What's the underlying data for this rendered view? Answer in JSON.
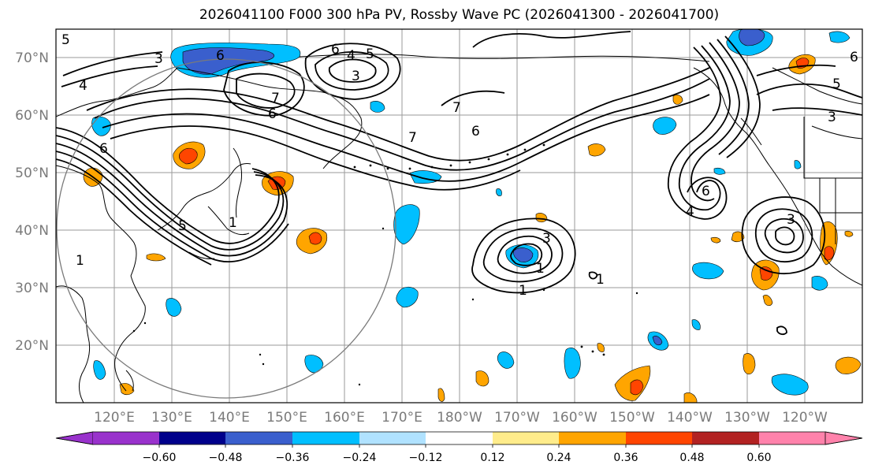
{
  "title": "2026041100 F000 300 hPa PV, Rossby Wave PC (2026041300 - 2026041700)",
  "lat_labels": [
    "70°N",
    "60°N",
    "50°N",
    "40°N",
    "30°N",
    "20°N"
  ],
  "lon_labels": [
    "120°E",
    "130°E",
    "140°E",
    "150°E",
    "160°E",
    "170°E",
    "180°W",
    "170°W",
    "160°W",
    "150°W",
    "140°W",
    "130°W",
    "120°W"
  ],
  "contour_labels": [
    "5",
    "3",
    "4",
    "6",
    "6",
    "4",
    "5",
    "3",
    "6",
    "7",
    "7",
    "6",
    "6",
    "5",
    "3",
    "7",
    "6",
    "6",
    "4",
    "3",
    "1",
    "5",
    "1",
    "1",
    "1",
    "3",
    "1"
  ],
  "colorbar": {
    "ticks": [
      "−0.60",
      "−0.48",
      "−0.36",
      "−0.24",
      "−0.12",
      "0.12",
      "0.24",
      "0.36",
      "0.48",
      "0.60"
    ],
    "colors": [
      "#9932cc",
      "#00008b",
      "#3a5fcd",
      "#00bfff",
      "#b0e2ff",
      "#ffffff",
      "#ffec8b",
      "#ffa500",
      "#ff4500",
      "#b22222",
      "#ff82ab"
    ]
  }
}
